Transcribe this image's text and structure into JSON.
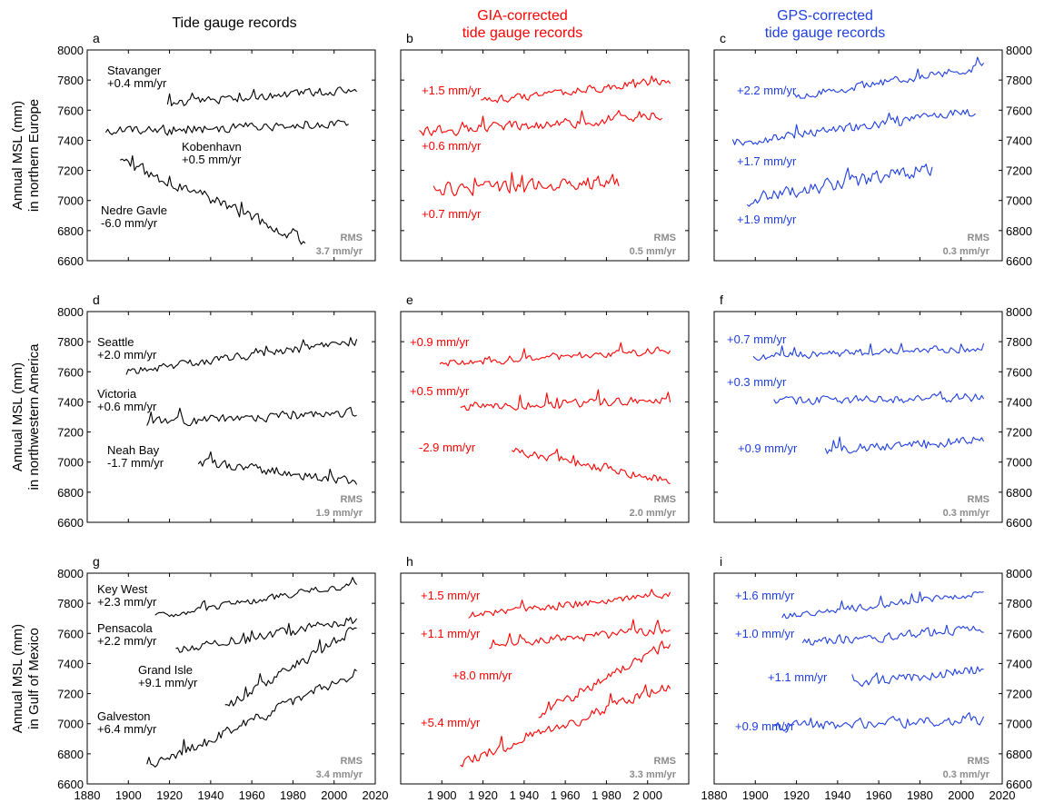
{
  "colors": {
    "raw": "#000000",
    "gia": "#ff0000",
    "gps": "#1f3fe0",
    "rms": "#8c8c8c"
  },
  "column_titles": [
    {
      "lines": [
        "Tide gauge records"
      ],
      "color": "#000000"
    },
    {
      "lines": [
        "GIA-corrected",
        "tide gauge records"
      ],
      "color": "#ff0000"
    },
    {
      "lines": [
        "GPS-corrected",
        "tide gauge records"
      ],
      "color": "#1f3fe0"
    }
  ],
  "row_ylabels": [
    [
      "Annual MSL (mm)",
      "in northern Europe"
    ],
    [
      "Annual MSL (mm)",
      "in northwestern America"
    ],
    [
      "Annual MSL (mm)",
      "in Gulf of Mexico"
    ]
  ],
  "y_ticks": [
    "6600",
    "6800",
    "7000",
    "7200",
    "7400",
    "7600",
    "7800",
    "8000"
  ],
  "x_ticks_std": [
    "1880",
    "1900",
    "1920",
    "1940",
    "1960",
    "1980",
    "2000",
    "2020"
  ],
  "x_ticks_mid": [
    "1 900",
    "1 920",
    "1 940",
    "1 960",
    "1 980",
    "2 000"
  ],
  "chart_data": [
    {
      "panel": "a",
      "type": "line",
      "xlim": [
        1880,
        2020
      ],
      "ylim": [
        6600,
        8000
      ],
      "rms": [
        "RMS",
        "3.7 mm/yr"
      ],
      "series": [
        {
          "name": "Stavanger",
          "label": [
            "Stavanger",
            "+0.4 mm/yr"
          ],
          "color": "#000000",
          "x_start": 1919,
          "x_end": 2011,
          "start": 7640,
          "end": 7740,
          "noise": 35,
          "seed": 1
        },
        {
          "name": "Kobenhavn",
          "label": [
            "Kobenhavn",
            "+0.5 mm/yr"
          ],
          "color": "#000000",
          "x_start": 1889,
          "x_end": 2007,
          "start": 7450,
          "end": 7520,
          "noise": 45,
          "seed": 2
        },
        {
          "name": "Nedre Gavle",
          "label": [
            "Nedre Gavle",
            "-6.0 mm/yr"
          ],
          "color": "#000000",
          "x_start": 1896,
          "x_end": 1986,
          "start": 7260,
          "end": 6740,
          "noise": 55,
          "seed": 3
        }
      ]
    },
    {
      "panel": "b",
      "type": "line",
      "xlim": [
        1880,
        2020
      ],
      "ylim": [
        6600,
        8000
      ],
      "rms": [
        "RMS",
        "0.5 mm/yr"
      ],
      "series": [
        {
          "label": [
            "+1.5 mm/yr"
          ],
          "color": "#ff0000",
          "x_start": 1919,
          "x_end": 2011,
          "start": 7660,
          "end": 7800,
          "noise": 35,
          "seed": 4
        },
        {
          "label": [
            "+0.6 mm/yr"
          ],
          "color": "#ff0000",
          "x_start": 1889,
          "x_end": 2007,
          "start": 7450,
          "end": 7560,
          "noise": 45,
          "seed": 5
        },
        {
          "label": [
            "+0.7 mm/yr"
          ],
          "color": "#ff0000",
          "x_start": 1896,
          "x_end": 1986,
          "start": 7070,
          "end": 7130,
          "noise": 60,
          "seed": 6
        }
      ]
    },
    {
      "panel": "c",
      "type": "line",
      "xlim": [
        1880,
        2020
      ],
      "ylim": [
        6600,
        8000
      ],
      "rms": [
        "RMS",
        "0.3 mm/yr"
      ],
      "series": [
        {
          "label": [
            "+2.2 mm/yr"
          ],
          "color": "#1f3fe0",
          "x_start": 1919,
          "x_end": 2011,
          "start": 7690,
          "end": 7890,
          "noise": 35,
          "seed": 7
        },
        {
          "label": [
            "+1.7 mm/yr"
          ],
          "color": "#1f3fe0",
          "x_start": 1889,
          "x_end": 2007,
          "start": 7380,
          "end": 7590,
          "noise": 40,
          "seed": 8
        },
        {
          "label": [
            "+1.9 mm/yr"
          ],
          "color": "#1f3fe0",
          "x_start": 1896,
          "x_end": 1986,
          "start": 7010,
          "end": 7210,
          "noise": 60,
          "seed": 9
        }
      ]
    },
    {
      "panel": "d",
      "type": "line",
      "xlim": [
        1880,
        2020
      ],
      "ylim": [
        6600,
        8000
      ],
      "rms": [
        "RMS",
        "1.9 mm/yr"
      ],
      "series": [
        {
          "name": "Seattle",
          "label": [
            "Seattle",
            "+2.0 mm/yr"
          ],
          "color": "#000000",
          "x_start": 1899,
          "x_end": 2011,
          "start": 7600,
          "end": 7800,
          "noise": 35,
          "seed": 10
        },
        {
          "name": "Victoria",
          "label": [
            "Victoria",
            "+0.6 mm/yr"
          ],
          "color": "#000000",
          "x_start": 1909,
          "x_end": 2011,
          "start": 7260,
          "end": 7330,
          "noise": 40,
          "seed": 11
        },
        {
          "name": "Neah Bay",
          "label": [
            "Neah Bay",
            "-1.7 mm/yr"
          ],
          "color": "#000000",
          "x_start": 1934,
          "x_end": 2011,
          "start": 7000,
          "end": 6870,
          "noise": 40,
          "seed": 12
        }
      ]
    },
    {
      "panel": "e",
      "type": "line",
      "xlim": [
        1880,
        2020
      ],
      "ylim": [
        6600,
        8000
      ],
      "rms": [
        "RMS",
        "2.0 mm/yr"
      ],
      "series": [
        {
          "label": [
            "+0.9 mm/yr"
          ],
          "color": "#ff0000",
          "x_start": 1899,
          "x_end": 2011,
          "start": 7660,
          "end": 7740,
          "noise": 35,
          "seed": 13
        },
        {
          "label": [
            "+0.5 mm/yr"
          ],
          "color": "#ff0000",
          "x_start": 1909,
          "x_end": 2011,
          "start": 7370,
          "end": 7410,
          "noise": 40,
          "seed": 14
        },
        {
          "label": [
            "-2.9 mm/yr"
          ],
          "color": "#ff0000",
          "x_start": 1934,
          "x_end": 2011,
          "start": 7080,
          "end": 6880,
          "noise": 40,
          "seed": 15
        }
      ]
    },
    {
      "panel": "f",
      "type": "line",
      "xlim": [
        1880,
        2020
      ],
      "ylim": [
        6600,
        8000
      ],
      "rms": [
        "RMS",
        "0.3 mm/yr"
      ],
      "series": [
        {
          "label": [
            "+0.7 mm/yr"
          ],
          "color": "#1f3fe0",
          "x_start": 1899,
          "x_end": 2011,
          "start": 7700,
          "end": 7760,
          "noise": 35,
          "seed": 16
        },
        {
          "label": [
            "+0.3 mm/yr"
          ],
          "color": "#1f3fe0",
          "x_start": 1909,
          "x_end": 2011,
          "start": 7410,
          "end": 7430,
          "noise": 40,
          "seed": 17
        },
        {
          "label": [
            "+0.9 mm/yr"
          ],
          "color": "#1f3fe0",
          "x_start": 1934,
          "x_end": 2011,
          "start": 7080,
          "end": 7150,
          "noise": 40,
          "seed": 18
        }
      ]
    },
    {
      "panel": "g",
      "type": "line",
      "xlim": [
        1880,
        2020
      ],
      "ylim": [
        6600,
        8000
      ],
      "rms": [
        "RMS",
        "3.4 mm/yr"
      ],
      "series": [
        {
          "name": "Key West",
          "label": [
            "Key West",
            "+2.3 mm/yr"
          ],
          "color": "#000000",
          "x_start": 1913,
          "x_end": 2011,
          "start": 7710,
          "end": 7930,
          "noise": 30,
          "seed": 19
        },
        {
          "name": "Pensacola",
          "label": [
            "Pensacola",
            "+2.2 mm/yr"
          ],
          "color": "#000000",
          "x_start": 1923,
          "x_end": 2011,
          "start": 7480,
          "end": 7690,
          "noise": 40,
          "seed": 20
        },
        {
          "name": "Grand Isle",
          "label": [
            "Grand Isle",
            "+9.1 mm/yr"
          ],
          "color": "#000000",
          "x_start": 1947,
          "x_end": 2011,
          "start": 7100,
          "end": 7640,
          "noise": 45,
          "seed": 21
        },
        {
          "name": "Galveston",
          "label": [
            "Galveston",
            "+6.4 mm/yr"
          ],
          "color": "#000000",
          "x_start": 1909,
          "x_end": 2011,
          "start": 6700,
          "end": 7340,
          "noise": 45,
          "seed": 22
        }
      ]
    },
    {
      "panel": "h",
      "type": "line",
      "xlim": [
        1880,
        2020
      ],
      "ylim": [
        6600,
        8000
      ],
      "rms": [
        "RMS",
        "3.3 mm/yr"
      ],
      "series": [
        {
          "label": [
            "+1.5 mm/yr"
          ],
          "color": "#ff0000",
          "x_start": 1913,
          "x_end": 2011,
          "start": 7720,
          "end": 7860,
          "noise": 30,
          "seed": 23
        },
        {
          "label": [
            "+1.1 mm/yr"
          ],
          "color": "#ff0000",
          "x_start": 1923,
          "x_end": 2011,
          "start": 7520,
          "end": 7630,
          "noise": 40,
          "seed": 24
        },
        {
          "label": [
            "+8.0 mm/yr"
          ],
          "color": "#ff0000",
          "x_start": 1947,
          "x_end": 2011,
          "start": 7060,
          "end": 7540,
          "noise": 45,
          "seed": 25
        },
        {
          "label": [
            "+5.4 mm/yr"
          ],
          "color": "#ff0000",
          "x_start": 1909,
          "x_end": 2011,
          "start": 6740,
          "end": 7250,
          "noise": 45,
          "seed": 26
        }
      ]
    },
    {
      "panel": "i",
      "type": "line",
      "xlim": [
        1880,
        2020
      ],
      "ylim": [
        6600,
        8000
      ],
      "rms": [
        "RMS",
        "0.3 mm/yr"
      ],
      "series": [
        {
          "label": [
            "+1.6 mm/yr"
          ],
          "color": "#1f3fe0",
          "x_start": 1913,
          "x_end": 2011,
          "start": 7710,
          "end": 7870,
          "noise": 30,
          "seed": 27
        },
        {
          "label": [
            "+1.0 mm/yr"
          ],
          "color": "#1f3fe0",
          "x_start": 1923,
          "x_end": 2011,
          "start": 7540,
          "end": 7630,
          "noise": 40,
          "seed": 28
        },
        {
          "label": [
            "+1.1 mm/yr"
          ],
          "color": "#1f3fe0",
          "x_start": 1947,
          "x_end": 2011,
          "start": 7270,
          "end": 7360,
          "noise": 45,
          "seed": 29
        },
        {
          "label": [
            "+0.9 mm/yr"
          ],
          "color": "#1f3fe0",
          "x_start": 1909,
          "x_end": 2011,
          "start": 6980,
          "end": 7030,
          "noise": 45,
          "seed": 30
        }
      ]
    }
  ]
}
